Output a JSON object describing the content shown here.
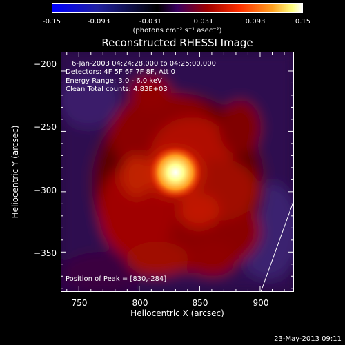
{
  "colorbar": {
    "ticks": [
      "-0.15",
      "-0.093",
      "-0.031",
      "0.031",
      "0.093",
      "0.15"
    ],
    "units": "(photons cm⁻² s⁻¹ asec⁻²)"
  },
  "chart_data": {
    "type": "heatmap",
    "title": "Reconstructed RHESSI Image",
    "xlabel": "Heliocentric X (arcsec)",
    "ylabel": "Heliocentric Y (arcsec)",
    "xlim": [
      735,
      928
    ],
    "ylim": [
      -383,
      -184
    ],
    "xticks": [
      750,
      800,
      850,
      900
    ],
    "yticks": [
      -200,
      -250,
      -300,
      -350
    ],
    "xtick_labels": [
      "750",
      "800",
      "850",
      "900"
    ],
    "ytick_labels": [
      "−200",
      "−250",
      "−300",
      "−350"
    ],
    "color_range": [
      -0.15,
      0.15
    ],
    "peak": [
      830,
      -284
    ],
    "annotations": [
      "6-Jan-2003 04:24:28.000 to 04:25:00.000",
      "Detectors: 4F 5F 6F 7F 8F, Att 0",
      "Energy Range: 3.0 - 6.0 keV",
      "Clean     Total counts: 4.83E+03"
    ],
    "peak_label": "Position of Peak = [830,-284]"
  },
  "footer": {
    "date": "23-May-2013 09:11"
  },
  "colors": {
    "background": "#000000",
    "axes": "#ffffff"
  }
}
